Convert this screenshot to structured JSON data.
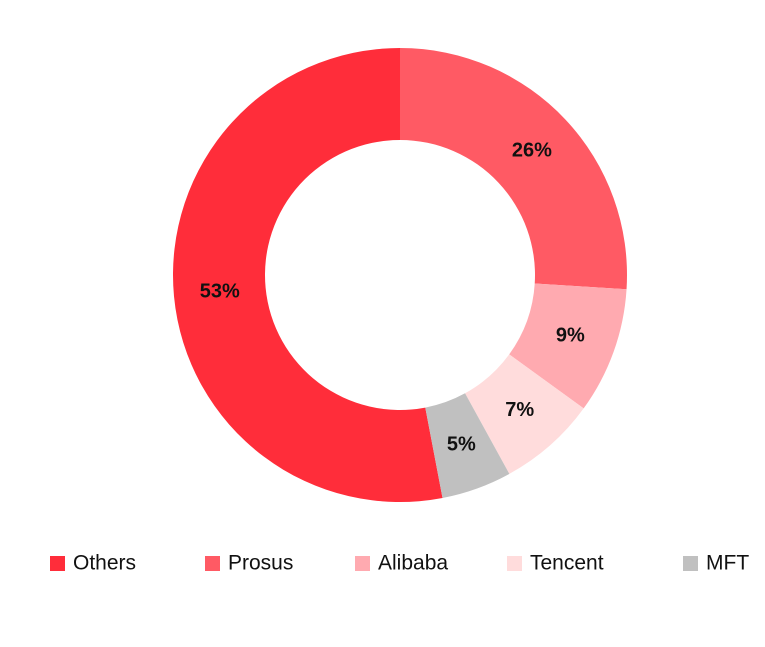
{
  "chart_data": {
    "type": "donut",
    "categories": [
      "Others",
      "Prosus",
      "Alibaba",
      "Tencent",
      "MFT"
    ],
    "values": [
      53,
      26,
      9,
      7,
      5
    ],
    "value_labels": [
      "53%",
      "26%",
      "9%",
      "7%",
      "5%"
    ],
    "colors": [
      "#ff2d3a",
      "#ff5a64",
      "#ffaab0",
      "#ffdcdc",
      "#c0c0c0"
    ]
  }
}
